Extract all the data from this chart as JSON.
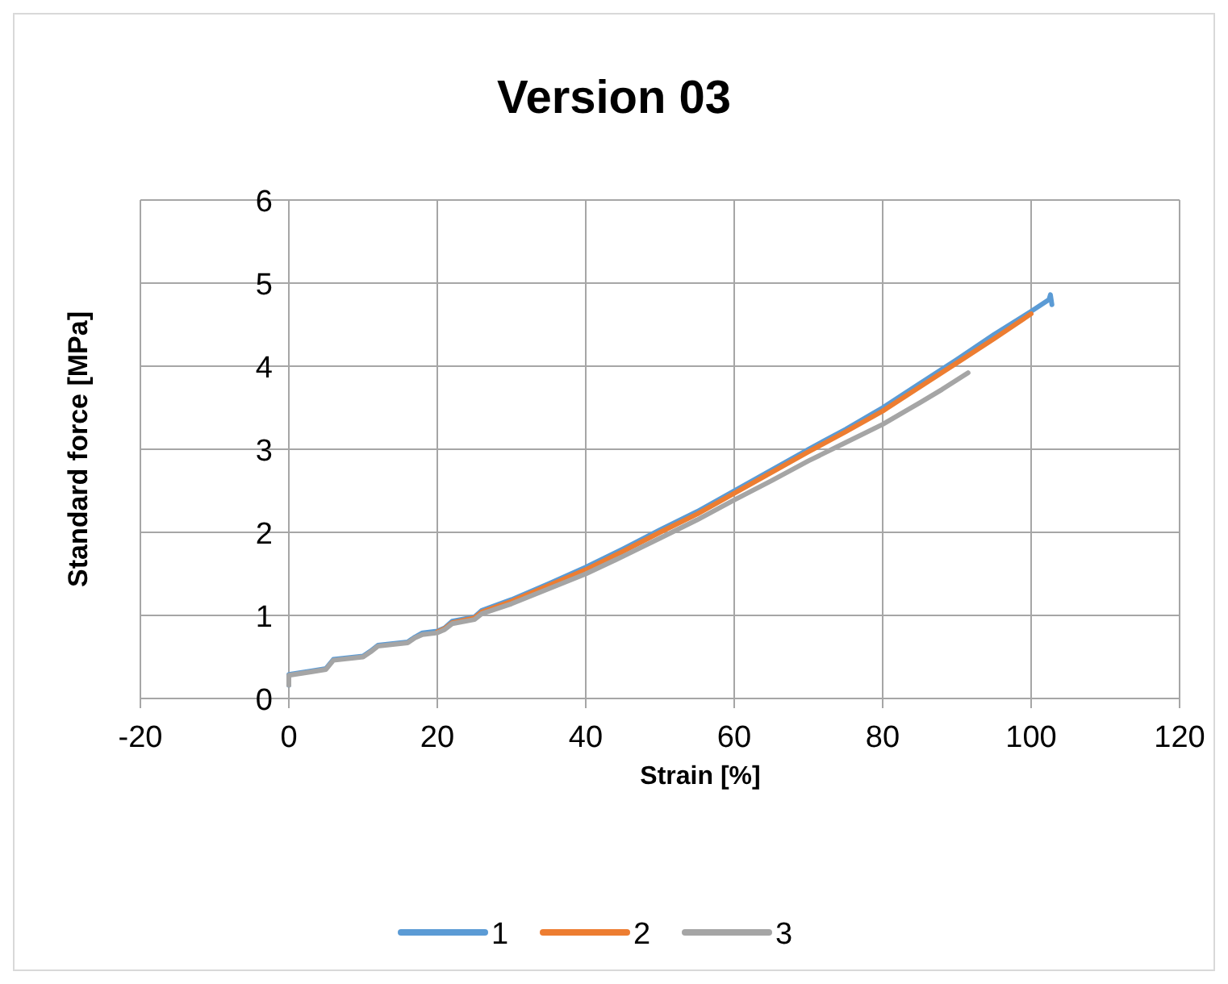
{
  "chart_data": {
    "type": "line",
    "title": "Version 03",
    "xlabel": "Strain [%]",
    "ylabel": "Standard force [MPa]",
    "xlim": [
      -20,
      120
    ],
    "xticks": [
      -20,
      0,
      20,
      40,
      60,
      80,
      100,
      120
    ],
    "ylim": [
      0,
      6
    ],
    "yticks": [
      0,
      1,
      2,
      3,
      4,
      5,
      6
    ],
    "grid": true,
    "legend": "bottom",
    "marker": "none",
    "line_style": "solid",
    "series": [
      {
        "name": "1",
        "color": "#5b9bd5",
        "x": [
          0,
          0,
          3,
          5,
          6,
          10,
          11,
          12,
          16,
          17,
          18,
          20,
          21,
          22,
          25,
          26,
          30,
          35,
          40,
          45,
          50,
          55,
          60,
          65,
          70,
          75,
          80,
          85,
          90,
          95,
          100,
          102.4,
          102.6,
          102.8
        ],
        "values": [
          0.16,
          0.29,
          0.33,
          0.36,
          0.47,
          0.51,
          0.57,
          0.64,
          0.68,
          0.74,
          0.79,
          0.81,
          0.85,
          0.93,
          0.98,
          1.06,
          1.19,
          1.38,
          1.58,
          1.8,
          2.03,
          2.25,
          2.5,
          2.75,
          3.0,
          3.24,
          3.5,
          3.79,
          4.08,
          4.38,
          4.66,
          4.8,
          4.86,
          4.74
        ]
      },
      {
        "name": "2",
        "color": "#ed7d31",
        "x": [
          20,
          21,
          22,
          25,
          26,
          30,
          35,
          40,
          45,
          50,
          55,
          60,
          65,
          70,
          75,
          80,
          85,
          90,
          95,
          100
        ],
        "values": [
          0.8,
          0.84,
          0.91,
          0.97,
          1.04,
          1.17,
          1.36,
          1.55,
          1.77,
          2.0,
          2.22,
          2.47,
          2.72,
          2.97,
          3.21,
          3.46,
          3.75,
          4.04,
          4.33,
          4.63
        ]
      },
      {
        "name": "3",
        "color": "#a5a5a5",
        "x": [
          0,
          0,
          3,
          5,
          6,
          10,
          11,
          12,
          16,
          17,
          18,
          20,
          21,
          22,
          25,
          26,
          30,
          35,
          40,
          45,
          50,
          55,
          60,
          65,
          70,
          75,
          80,
          85,
          88,
          91.5
        ],
        "values": [
          0.16,
          0.28,
          0.32,
          0.35,
          0.46,
          0.5,
          0.56,
          0.63,
          0.67,
          0.73,
          0.77,
          0.79,
          0.83,
          0.9,
          0.95,
          1.02,
          1.14,
          1.32,
          1.5,
          1.71,
          1.93,
          2.15,
          2.39,
          2.62,
          2.86,
          3.08,
          3.3,
          3.56,
          3.72,
          3.92
        ]
      }
    ]
  }
}
